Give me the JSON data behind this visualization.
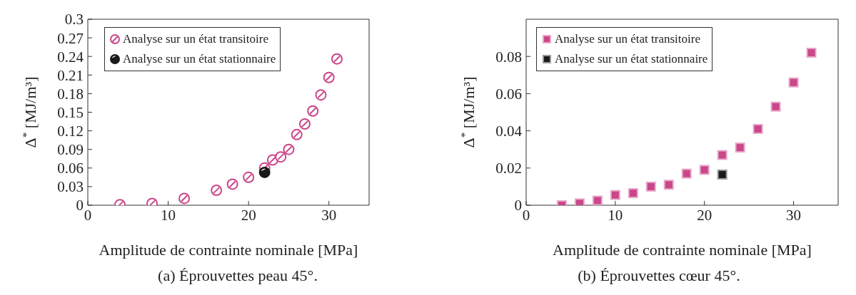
{
  "chart_data": [
    {
      "type": "scatter",
      "xlabel": "Amplitude de contrainte nominale [MPa]",
      "ylabel": "Δ$^{*}$ [MJ/m³]",
      "annotations": [
        "(a) Éprouvettes peau 45°."
      ],
      "marker": "circle",
      "legend": "top left",
      "grid": false,
      "xlim": [
        0,
        35
      ],
      "xticks": [
        0,
        10,
        20,
        30
      ],
      "ylim": [
        0,
        0.3
      ],
      "yticks": [
        0,
        0.03,
        0.06,
        0.09,
        0.12,
        0.15,
        0.18,
        0.21,
        0.24,
        0.27,
        0.3
      ],
      "series": [
        {
          "name": "Analyse sur un état transitoire",
          "color": "#c9478a",
          "x": [
            4,
            8,
            12,
            16,
            18,
            20,
            22,
            23,
            24,
            25,
            26,
            27,
            28,
            29,
            30,
            31
          ],
          "values": [
            0.001,
            0.003,
            0.011,
            0.024,
            0.034,
            0.045,
            0.06,
            0.073,
            0.078,
            0.09,
            0.114,
            0.131,
            0.152,
            0.178,
            0.206,
            0.236
          ]
        },
        {
          "name": "Analyse sur un état stationnaire",
          "color": "#1a1a1a",
          "x": [
            22
          ],
          "values": [
            0.053
          ]
        }
      ]
    },
    {
      "type": "scatter",
      "xlabel": "Amplitude de contrainte nominale [MPa]",
      "ylabel": "Δ$^{*}$ [MJ/m³]",
      "annotations": [
        "(b) Éprouvettes cœur 45°."
      ],
      "marker": "square",
      "legend": "top left",
      "grid": false,
      "xlim": [
        0,
        35
      ],
      "xticks": [
        0,
        10,
        20,
        30
      ],
      "ylim": [
        0,
        0.1
      ],
      "yticks": [
        0,
        0.02,
        0.04,
        0.06,
        0.08
      ],
      "series": [
        {
          "name": "Analyse sur un état transitoire",
          "color": "#c9478a",
          "x": [
            4,
            6,
            8,
            10,
            12,
            14,
            16,
            18,
            20,
            22,
            24,
            26,
            28,
            30,
            32
          ],
          "values": [
            0,
            0.001,
            0.0025,
            0.0055,
            0.0065,
            0.01,
            0.011,
            0.017,
            0.019,
            0.027,
            0.031,
            0.041,
            0.053,
            0.066,
            0.082
          ]
        },
        {
          "name": "Analyse sur un état stationnaire",
          "color": "#1a1a1a",
          "x": [
            22
          ],
          "values": [
            0.0165
          ]
        }
      ]
    }
  ]
}
